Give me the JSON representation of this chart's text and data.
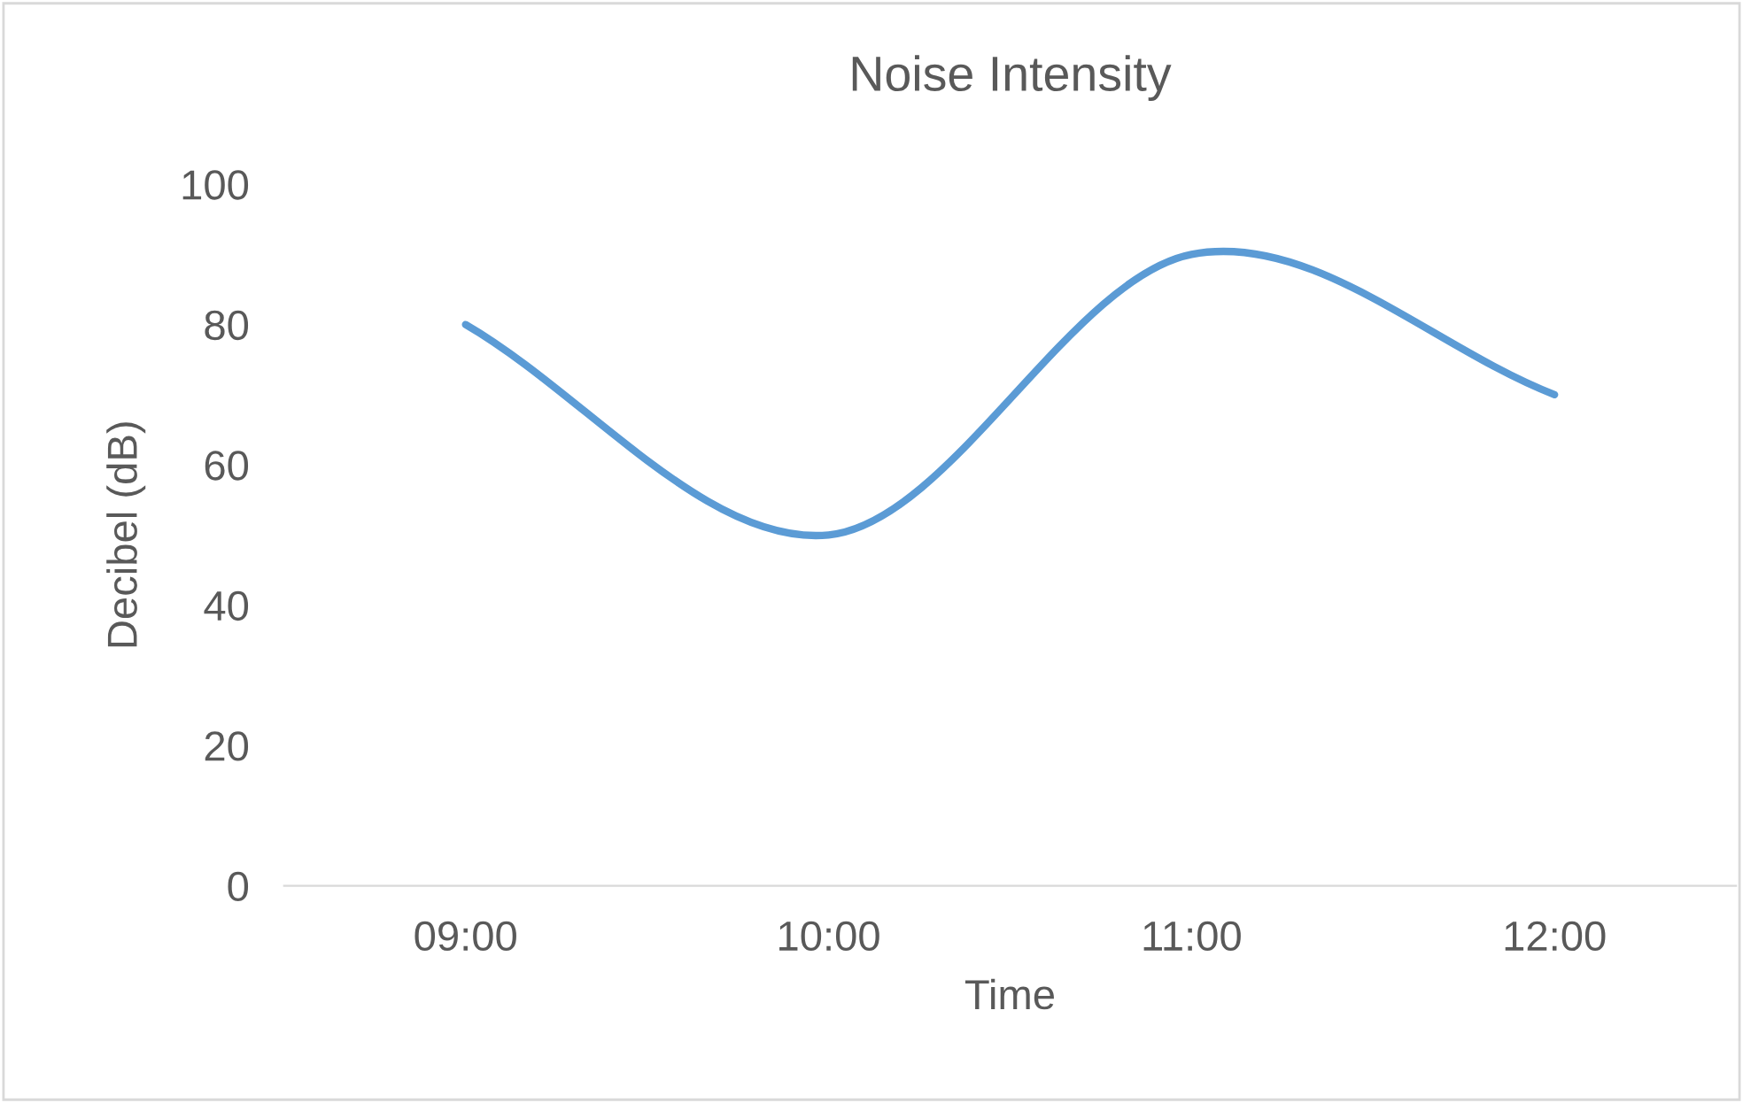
{
  "chart_data": {
    "type": "line",
    "title": "Noise Intensity",
    "xlabel": "Time",
    "ylabel": "Decibel (dB)",
    "categories": [
      "09:00",
      "10:00",
      "11:00",
      "12:00"
    ],
    "series": [
      {
        "color": "#5b9bd5",
        "values": [
          80,
          50,
          90,
          70
        ]
      }
    ],
    "ylim": [
      0,
      100
    ],
    "yticks": [
      0,
      20,
      40,
      60,
      80,
      100
    ],
    "grid": false,
    "marker": "none",
    "line_style": "solid"
  }
}
